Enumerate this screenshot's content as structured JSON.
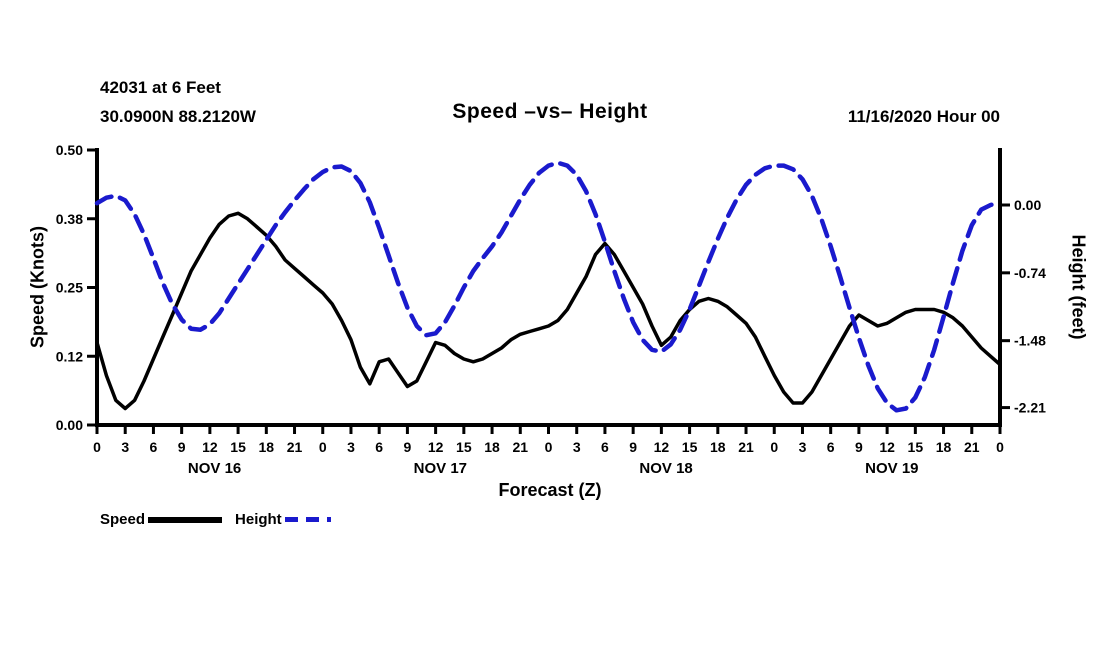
{
  "header": {
    "station": "42031 at 6 Feet",
    "coords": "30.0900N 88.2120W",
    "title": "Speed –vs– Height",
    "datetime": "11/16/2020 Hour 00"
  },
  "legend": {
    "speed_label": "Speed",
    "height_label": "Height"
  },
  "colors": {
    "speed": "#000000",
    "height": "#1a1acd"
  },
  "chart_data": {
    "type": "line",
    "title": "Speed –vs– Height",
    "xlabel": "Forecast (Z)",
    "ylabel_left": "Speed (Knots)",
    "ylabel_right": "Height (feet)",
    "x_start": 0,
    "x_end": 96,
    "x_step": 1,
    "x_tick_interval": 3,
    "x_tick_labels": [
      "0",
      "3",
      "6",
      "9",
      "12",
      "15",
      "18",
      "21",
      "0",
      "3",
      "6",
      "9",
      "12",
      "15",
      "18",
      "21",
      "0",
      "3",
      "6",
      "9",
      "12",
      "15",
      "18",
      "21",
      "0",
      "3",
      "6",
      "9",
      "12",
      "15",
      "18",
      "21",
      "0"
    ],
    "day_labels": [
      "NOV 16",
      "NOV 17",
      "NOV 18",
      "NOV 19"
    ],
    "grid": false,
    "legend_position": "bottom-left",
    "left_axis": {
      "min": 0,
      "max": 0.5,
      "ticks": [
        {
          "label": "0.00",
          "value": 0
        },
        {
          "label": "0.12",
          "value": 0.125
        },
        {
          "label": "0.25",
          "value": 0.25
        },
        {
          "label": "0.38",
          "value": 0.375
        },
        {
          "label": "0.50",
          "value": 0.5
        }
      ]
    },
    "right_axis": {
      "min": -2.4,
      "max": 0.6,
      "ticks": [
        {
          "label": "0.00",
          "value": 0
        },
        {
          "label": "-0.74",
          "value": -0.74
        },
        {
          "label": "-1.48",
          "value": -1.48
        },
        {
          "label": "-2.21",
          "value": -2.21
        }
      ]
    },
    "series": [
      {
        "name": "Speed",
        "axis": "left",
        "line": "solid",
        "color": "#000000",
        "values": [
          0.15,
          0.09,
          0.045,
          0.03,
          0.045,
          0.08,
          0.12,
          0.16,
          0.2,
          0.24,
          0.28,
          0.31,
          0.34,
          0.365,
          0.38,
          0.385,
          0.375,
          0.36,
          0.345,
          0.325,
          0.3,
          0.285,
          0.27,
          0.255,
          0.24,
          0.22,
          0.19,
          0.155,
          0.105,
          0.075,
          0.115,
          0.12,
          0.095,
          0.07,
          0.08,
          0.115,
          0.15,
          0.145,
          0.13,
          0.12,
          0.115,
          0.12,
          0.13,
          0.14,
          0.155,
          0.165,
          0.17,
          0.175,
          0.18,
          0.19,
          0.21,
          0.24,
          0.27,
          0.31,
          0.33,
          0.31,
          0.28,
          0.25,
          0.22,
          0.18,
          0.145,
          0.16,
          0.19,
          0.21,
          0.225,
          0.23,
          0.225,
          0.215,
          0.2,
          0.185,
          0.16,
          0.125,
          0.09,
          0.06,
          0.04,
          0.04,
          0.06,
          0.09,
          0.12,
          0.15,
          0.18,
          0.2,
          0.19,
          0.18,
          0.185,
          0.195,
          0.205,
          0.21,
          0.21,
          0.21,
          0.205,
          0.195,
          0.18,
          0.16,
          0.14,
          0.125,
          0.11
        ]
      },
      {
        "name": "Height",
        "axis": "right",
        "line": "dashed",
        "color": "#1a1acd",
        "values": [
          0.02,
          0.08,
          0.1,
          0.05,
          -0.1,
          -0.32,
          -0.58,
          -0.85,
          -1.08,
          -1.25,
          -1.35,
          -1.36,
          -1.3,
          -1.18,
          -1.02,
          -0.86,
          -0.7,
          -0.54,
          -0.38,
          -0.22,
          -0.08,
          0.05,
          0.17,
          0.28,
          0.36,
          0.41,
          0.42,
          0.37,
          0.24,
          0.03,
          -0.25,
          -0.55,
          -0.85,
          -1.12,
          -1.32,
          -1.42,
          -1.4,
          -1.28,
          -1.1,
          -0.9,
          -0.72,
          -0.58,
          -0.45,
          -0.3,
          -0.12,
          0.06,
          0.22,
          0.35,
          0.43,
          0.46,
          0.43,
          0.33,
          0.15,
          -0.1,
          -0.4,
          -0.72,
          -1.02,
          -1.28,
          -1.47,
          -1.58,
          -1.6,
          -1.52,
          -1.36,
          -1.14,
          -0.88,
          -0.62,
          -0.37,
          -0.14,
          0.06,
          0.22,
          0.33,
          0.4,
          0.43,
          0.43,
          0.39,
          0.28,
          0.1,
          -0.15,
          -0.45,
          -0.78,
          -1.12,
          -1.45,
          -1.75,
          -2.0,
          -2.16,
          -2.24,
          -2.22,
          -2.1,
          -1.88,
          -1.58,
          -1.22,
          -0.85,
          -0.5,
          -0.22,
          -0.05,
          0.0,
          0.03
        ]
      }
    ]
  }
}
